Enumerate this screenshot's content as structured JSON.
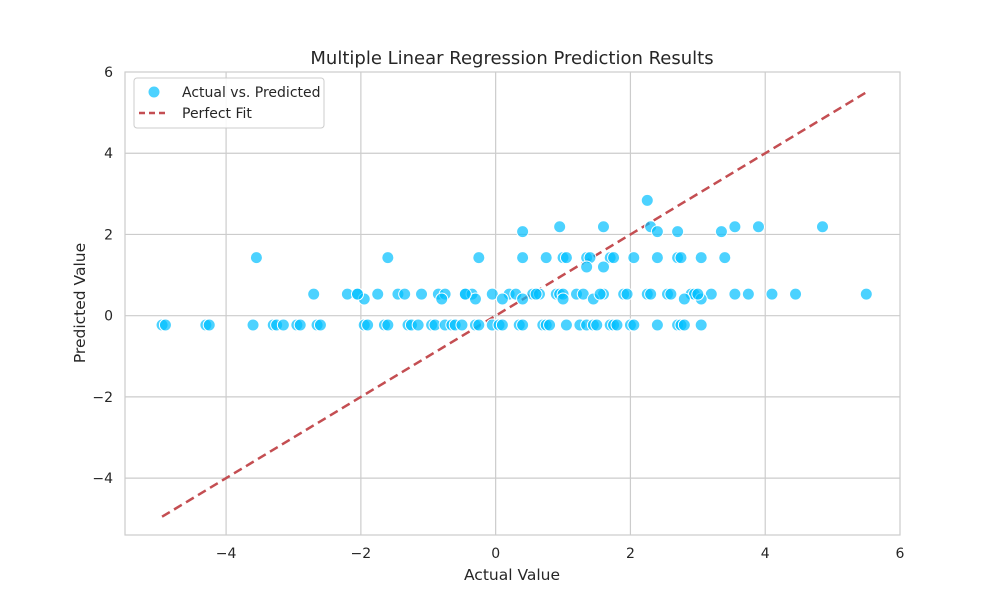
{
  "chart_data": {
    "type": "scatter",
    "title": "Multiple Linear Regression Prediction Results",
    "xlabel": "Actual Value",
    "ylabel": "Predicted Value",
    "xlim": [
      -5.5,
      6
    ],
    "ylim": [
      -5.4,
      6
    ],
    "xticks": [
      -4,
      -2,
      0,
      2,
      4,
      6
    ],
    "yticks": [
      -4,
      -2,
      0,
      2,
      4,
      6
    ],
    "xtick_labels": [
      "−4",
      "−2",
      "0",
      "2",
      "4",
      "6"
    ],
    "ytick_labels": [
      "−4",
      "−2",
      "0",
      "2",
      "4",
      "6"
    ],
    "grid": true,
    "legend_position": "top-left",
    "series": [
      {
        "name": "Actual vs. Predicted",
        "kind": "scatter",
        "color": "#00bfff",
        "points": [
          [
            -4.95,
            -0.23
          ],
          [
            -4.9,
            -0.23
          ],
          [
            -4.3,
            -0.23
          ],
          [
            -4.25,
            -0.23
          ],
          [
            -3.6,
            -0.23
          ],
          [
            -3.3,
            -0.23
          ],
          [
            -3.25,
            -0.23
          ],
          [
            -3.15,
            -0.23
          ],
          [
            -2.95,
            -0.23
          ],
          [
            -2.9,
            -0.23
          ],
          [
            -2.65,
            -0.23
          ],
          [
            -2.6,
            -0.23
          ],
          [
            -1.95,
            -0.23
          ],
          [
            -1.9,
            -0.23
          ],
          [
            -1.65,
            -0.23
          ],
          [
            -1.6,
            -0.23
          ],
          [
            -1.3,
            -0.23
          ],
          [
            -1.25,
            -0.23
          ],
          [
            -1.15,
            -0.23
          ],
          [
            -0.95,
            -0.23
          ],
          [
            -0.9,
            -0.23
          ],
          [
            -0.75,
            -0.23
          ],
          [
            -0.65,
            -0.23
          ],
          [
            -0.6,
            -0.23
          ],
          [
            -0.5,
            -0.23
          ],
          [
            -0.3,
            -0.23
          ],
          [
            -0.25,
            -0.23
          ],
          [
            -0.05,
            -0.23
          ],
          [
            0.05,
            -0.23
          ],
          [
            0.1,
            -0.23
          ],
          [
            0.35,
            -0.23
          ],
          [
            0.4,
            -0.23
          ],
          [
            0.7,
            -0.23
          ],
          [
            0.75,
            -0.23
          ],
          [
            0.8,
            -0.23
          ],
          [
            1.05,
            -0.23
          ],
          [
            1.25,
            -0.23
          ],
          [
            1.35,
            -0.23
          ],
          [
            1.45,
            -0.23
          ],
          [
            1.5,
            -0.23
          ],
          [
            1.7,
            -0.23
          ],
          [
            1.75,
            -0.23
          ],
          [
            1.8,
            -0.23
          ],
          [
            2.0,
            -0.23
          ],
          [
            2.05,
            -0.23
          ],
          [
            2.4,
            -0.23
          ],
          [
            2.7,
            -0.23
          ],
          [
            2.75,
            -0.23
          ],
          [
            2.8,
            -0.23
          ],
          [
            3.05,
            -0.23
          ],
          [
            -3.55,
            1.43
          ],
          [
            -1.6,
            1.43
          ],
          [
            -0.25,
            1.43
          ],
          [
            0.4,
            1.43
          ],
          [
            0.75,
            1.43
          ],
          [
            1.0,
            1.43
          ],
          [
            1.05,
            1.43
          ],
          [
            1.35,
            1.43
          ],
          [
            1.4,
            1.43
          ],
          [
            1.7,
            1.43
          ],
          [
            1.75,
            1.43
          ],
          [
            2.05,
            1.43
          ],
          [
            2.4,
            1.43
          ],
          [
            2.7,
            1.43
          ],
          [
            2.75,
            1.43
          ],
          [
            3.05,
            1.43
          ],
          [
            3.4,
            1.43
          ],
          [
            -2.7,
            0.53
          ],
          [
            -2.2,
            0.53
          ],
          [
            -2.05,
            0.53
          ],
          [
            -1.75,
            0.53
          ],
          [
            -1.45,
            0.53
          ],
          [
            -1.35,
            0.53
          ],
          [
            -1.1,
            0.53
          ],
          [
            -0.85,
            0.53
          ],
          [
            -0.75,
            0.53
          ],
          [
            -0.45,
            0.53
          ],
          [
            -0.35,
            0.53
          ],
          [
            -0.05,
            0.53
          ],
          [
            0.2,
            0.53
          ],
          [
            0.3,
            0.53
          ],
          [
            0.55,
            0.53
          ],
          [
            0.65,
            0.53
          ],
          [
            0.9,
            0.53
          ],
          [
            0.95,
            0.53
          ],
          [
            1.0,
            0.53
          ],
          [
            1.2,
            0.53
          ],
          [
            1.3,
            0.53
          ],
          [
            1.6,
            0.53
          ],
          [
            1.9,
            0.53
          ],
          [
            1.95,
            0.53
          ],
          [
            2.25,
            0.53
          ],
          [
            2.3,
            0.53
          ],
          [
            2.55,
            0.53
          ],
          [
            2.6,
            0.53
          ],
          [
            2.9,
            0.53
          ],
          [
            2.95,
            0.53
          ],
          [
            3.2,
            0.53
          ],
          [
            3.55,
            0.53
          ],
          [
            3.75,
            0.53
          ],
          [
            4.1,
            0.53
          ],
          [
            4.45,
            0.53
          ],
          [
            5.5,
            0.53
          ],
          [
            -1.95,
            0.41
          ],
          [
            -0.8,
            0.41
          ],
          [
            -0.3,
            0.41
          ],
          [
            0.1,
            0.41
          ],
          [
            0.4,
            0.41
          ],
          [
            1.0,
            0.41
          ],
          [
            1.45,
            0.41
          ],
          [
            2.8,
            0.41
          ],
          [
            3.05,
            0.41
          ],
          [
            -2.05,
            0.53
          ],
          [
            -0.45,
            0.53
          ],
          [
            0.6,
            0.53
          ],
          [
            1.55,
            0.53
          ],
          [
            3.0,
            0.53
          ],
          [
            0.4,
            2.07
          ],
          [
            0.95,
            2.19
          ],
          [
            1.6,
            2.19
          ],
          [
            2.25,
            2.84
          ],
          [
            2.3,
            2.19
          ],
          [
            2.4,
            2.07
          ],
          [
            2.7,
            2.07
          ],
          [
            3.35,
            2.07
          ],
          [
            3.55,
            2.19
          ],
          [
            3.9,
            2.19
          ],
          [
            4.85,
            2.19
          ],
          [
            1.6,
            1.2
          ],
          [
            1.35,
            1.2
          ]
        ]
      },
      {
        "name": "Perfect Fit",
        "kind": "line",
        "color": "#c44e52",
        "dash": true,
        "points": [
          [
            -4.95,
            -4.95
          ],
          [
            5.5,
            5.5
          ]
        ]
      }
    ]
  }
}
